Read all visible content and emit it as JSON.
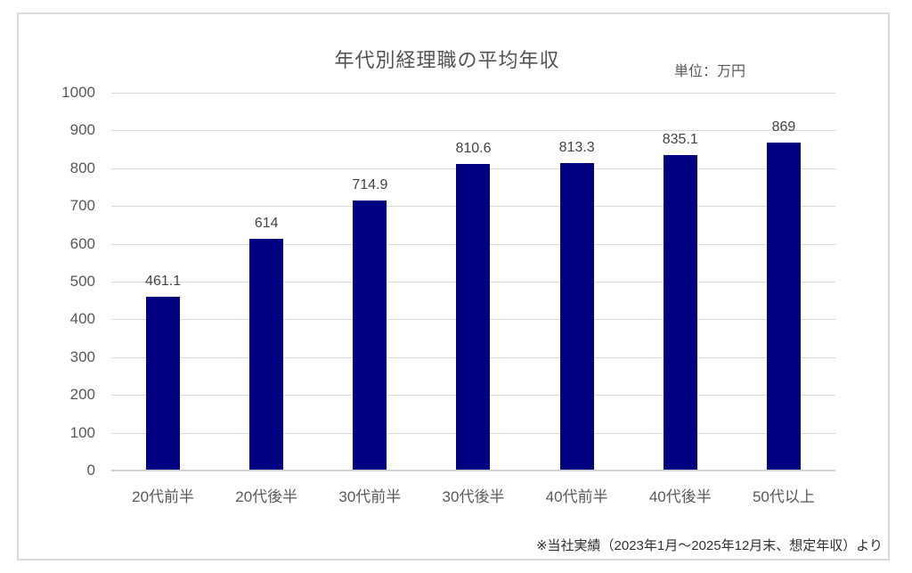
{
  "chart_data": {
    "type": "bar",
    "title": "年代別経理職の平均年収",
    "unit_label": "単位：万円",
    "categories": [
      "20代前半",
      "20代後半",
      "30代前半",
      "30代後半",
      "40代前半",
      "40代後半",
      "50代以上"
    ],
    "values": [
      461.1,
      614,
      714.9,
      810.6,
      813.3,
      835.1,
      869
    ],
    "data_labels": [
      "461.1",
      "614",
      "714.9",
      "810.6",
      "813.3",
      "835.1",
      "869"
    ],
    "xlabel": "",
    "ylabel": "",
    "ylim": [
      0,
      1000
    ],
    "ytick_interval": 100,
    "yticks": [
      0,
      100,
      200,
      300,
      400,
      500,
      600,
      700,
      800,
      900,
      1000
    ],
    "grid": true,
    "legend": "none",
    "footnote": "※当社実績（2023年1月～2025年12月末、想定年収）より"
  },
  "colors": {
    "bar": "#000080",
    "gridline": "#d9d9d9",
    "axis_line": "#d2d2d2",
    "tick_text": "#595959",
    "title_text": "#535353",
    "data_label_text": "#444444",
    "footnote_text": "#303030",
    "frame_border": "#dbdbdb",
    "background": "#ffffff"
  }
}
